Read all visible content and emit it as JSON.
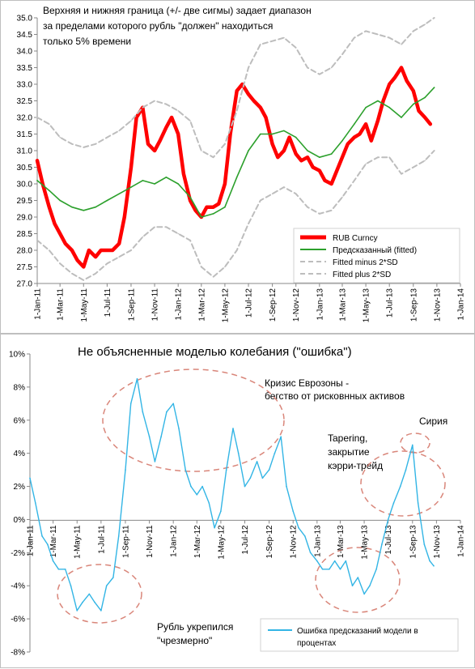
{
  "colors": {
    "rub": "#ff0000",
    "fitted": "#2ca02c",
    "bands": "#bdbdbd",
    "error": "#33b5e5",
    "circles": "#d9867a",
    "annot_red": "#e03030",
    "grid": "#d9d9d9"
  },
  "x_ticks": [
    "1-Jan-11",
    "1-Mar-11",
    "1-May-11",
    "1-Jul-11",
    "1-Sep-11",
    "1-Nov-11",
    "1-Jan-12",
    "1-Mar-12",
    "1-May-12",
    "1-Jul-12",
    "1-Sep-12",
    "1-Nov-12",
    "1-Jan-13",
    "1-Mar-13",
    "1-May-13",
    "1-Jul-13",
    "1-Sep-13",
    "1-Nov-13",
    "1-Jan-14"
  ],
  "top_chart": {
    "title_lines": [
      "Верхняя и нижняя граница (+/- две сигмы) задает диапазон",
      "за пределами которого рубль \"должен\" находиться",
      "только 5% времени"
    ],
    "y_ticks": [
      "27.0",
      "27.5",
      "28.0",
      "28.5",
      "29.0",
      "29.5",
      "30.0",
      "30.5",
      "31.0",
      "31.5",
      "32.0",
      "32.5",
      "33.0",
      "33.5",
      "34.0",
      "34.5",
      "35.0"
    ],
    "legend": [
      "RUB Curncy",
      "Предсказанный (fitted)",
      "Fitted minus 2*SD",
      "Fitted plus 2*SD"
    ]
  },
  "bottom_chart": {
    "title": "Не объясненные моделью колебания (\"ошибка\")",
    "y_ticks": [
      "-8%",
      "-6%",
      "-4%",
      "-2%",
      "0%",
      "2%",
      "4%",
      "6%",
      "8%",
      "10%"
    ],
    "legend": [
      "Ошибка предсказаний модели в процентах"
    ],
    "annotations": [
      {
        "lines": [
          "Кризис Еврозоны -",
          "бегство от рисковнных активов"
        ]
      },
      {
        "lines": [
          "Tapering,",
          "закрытие",
          "кэрри-трейд"
        ]
      },
      {
        "lines": [
          "Сирия"
        ]
      },
      {
        "lines": [
          "Рубль укрепился",
          "\"чрезмерно\""
        ]
      }
    ]
  },
  "chart_data": [
    {
      "type": "line",
      "title": "Верхняя и нижняя граница (+/- две сигмы) задает диапазон за пределами которого рубль \"должен\" находиться только 5% времени",
      "xlabel": "",
      "ylabel": "",
      "x_range": [
        "2011-01-01",
        "2014-01-01"
      ],
      "ylim": [
        27.0,
        35.0
      ],
      "grid": false,
      "legend_position": "bottom-right",
      "series": [
        {
          "name": "RUB Curncy",
          "color": "#ff0000",
          "x": [
            "2011-01-01",
            "2011-01-15",
            "2011-02-01",
            "2011-02-15",
            "2011-03-01",
            "2011-03-15",
            "2011-04-01",
            "2011-04-15",
            "2011-05-01",
            "2011-05-15",
            "2011-06-01",
            "2011-06-15",
            "2011-07-01",
            "2011-07-15",
            "2011-08-01",
            "2011-08-15",
            "2011-09-01",
            "2011-09-15",
            "2011-10-01",
            "2011-10-15",
            "2011-11-01",
            "2011-11-15",
            "2011-12-01",
            "2011-12-15",
            "2012-01-01",
            "2012-01-15",
            "2012-02-01",
            "2012-02-15",
            "2012-03-01",
            "2012-03-15",
            "2012-04-01",
            "2012-04-15",
            "2012-05-01",
            "2012-05-15",
            "2012-06-01",
            "2012-06-15",
            "2012-07-01",
            "2012-07-15",
            "2012-08-01",
            "2012-08-15",
            "2012-09-01",
            "2012-09-15",
            "2012-10-01",
            "2012-10-15",
            "2012-11-01",
            "2012-11-15",
            "2012-12-01",
            "2012-12-15",
            "2013-01-01",
            "2013-01-15",
            "2013-02-01",
            "2013-02-15",
            "2013-03-01",
            "2013-03-15",
            "2013-04-01",
            "2013-04-15",
            "2013-05-01",
            "2013-05-15",
            "2013-06-01",
            "2013-06-15",
            "2013-07-01",
            "2013-07-15",
            "2013-08-01",
            "2013-08-15",
            "2013-09-01",
            "2013-09-15",
            "2013-10-01",
            "2013-10-15"
          ],
          "values": [
            30.7,
            30.0,
            29.3,
            28.8,
            28.5,
            28.2,
            28.0,
            27.7,
            27.5,
            28.0,
            27.8,
            28.0,
            28.0,
            28.0,
            28.2,
            29.0,
            30.5,
            32.0,
            32.3,
            31.2,
            31.0,
            31.3,
            31.7,
            32.0,
            31.5,
            30.3,
            29.5,
            29.2,
            29.0,
            29.3,
            29.3,
            29.4,
            30.0,
            31.5,
            32.8,
            33.0,
            32.7,
            32.5,
            32.3,
            32.0,
            31.2,
            30.8,
            31.0,
            31.4,
            30.9,
            30.7,
            30.8,
            30.5,
            30.4,
            30.1,
            30.0,
            30.4,
            30.8,
            31.2,
            31.4,
            31.5,
            31.8,
            31.3,
            31.9,
            32.5,
            33.0,
            33.2,
            33.5,
            33.1,
            32.8,
            32.2,
            32.0,
            31.8
          ]
        },
        {
          "name": "Предсказанный (fitted)",
          "color": "#2ca02c",
          "x": [
            "2011-01-01",
            "2011-02-01",
            "2011-03-01",
            "2011-04-01",
            "2011-05-01",
            "2011-06-01",
            "2011-07-01",
            "2011-08-01",
            "2011-09-01",
            "2011-10-01",
            "2011-11-01",
            "2011-12-01",
            "2012-01-01",
            "2012-02-01",
            "2012-03-01",
            "2012-04-01",
            "2012-05-01",
            "2012-06-01",
            "2012-07-01",
            "2012-08-01",
            "2012-09-01",
            "2012-10-01",
            "2012-11-01",
            "2012-12-01",
            "2013-01-01",
            "2013-02-01",
            "2013-03-01",
            "2013-04-01",
            "2013-05-01",
            "2013-06-01",
            "2013-07-01",
            "2013-08-01",
            "2013-09-01",
            "2013-10-01",
            "2013-10-25"
          ],
          "values": [
            30.1,
            29.8,
            29.5,
            29.3,
            29.2,
            29.3,
            29.5,
            29.7,
            29.9,
            30.1,
            30.0,
            30.2,
            30.0,
            29.6,
            29.0,
            29.1,
            29.3,
            30.2,
            31.0,
            31.5,
            31.5,
            31.6,
            31.4,
            31.0,
            30.8,
            30.9,
            31.3,
            31.8,
            32.3,
            32.5,
            32.3,
            32.0,
            32.4,
            32.6,
            32.9
          ]
        },
        {
          "name": "Fitted minus 2*SD",
          "color": "#bdbdbd",
          "x": [
            "2011-01-01",
            "2011-02-01",
            "2011-03-01",
            "2011-04-01",
            "2011-05-01",
            "2011-06-01",
            "2011-07-01",
            "2011-08-01",
            "2011-09-01",
            "2011-10-01",
            "2011-11-01",
            "2011-12-01",
            "2012-01-01",
            "2012-02-01",
            "2012-03-01",
            "2012-04-01",
            "2012-05-01",
            "2012-06-01",
            "2012-07-01",
            "2012-08-01",
            "2012-09-01",
            "2012-10-01",
            "2012-11-01",
            "2012-12-01",
            "2013-01-01",
            "2013-02-01",
            "2013-03-01",
            "2013-04-01",
            "2013-05-01",
            "2013-06-01",
            "2013-07-01",
            "2013-08-01",
            "2013-09-01",
            "2013-10-01",
            "2013-10-25"
          ],
          "values": [
            28.3,
            28.0,
            27.6,
            27.3,
            27.1,
            27.3,
            27.6,
            27.8,
            28.0,
            28.4,
            28.7,
            28.7,
            28.5,
            28.3,
            27.5,
            27.2,
            27.5,
            28.0,
            28.8,
            29.5,
            29.7,
            29.9,
            29.7,
            29.3,
            29.1,
            29.2,
            29.6,
            30.1,
            30.6,
            30.8,
            30.8,
            30.3,
            30.5,
            30.7,
            31.0
          ]
        },
        {
          "name": "Fitted plus 2*SD",
          "color": "#bdbdbd",
          "x": [
            "2011-01-01",
            "2011-02-01",
            "2011-03-01",
            "2011-04-01",
            "2011-05-01",
            "2011-06-01",
            "2011-07-01",
            "2011-08-01",
            "2011-09-01",
            "2011-10-01",
            "2011-11-01",
            "2011-12-01",
            "2012-01-01",
            "2012-02-01",
            "2012-03-01",
            "2012-04-01",
            "2012-05-01",
            "2012-06-01",
            "2012-07-01",
            "2012-08-01",
            "2012-09-01",
            "2012-10-01",
            "2012-11-01",
            "2012-12-01",
            "2013-01-01",
            "2013-02-01",
            "2013-03-01",
            "2013-04-01",
            "2013-05-01",
            "2013-06-01",
            "2013-07-01",
            "2013-08-01",
            "2013-09-01",
            "2013-10-01",
            "2013-10-25"
          ],
          "values": [
            32.0,
            31.8,
            31.4,
            31.2,
            31.1,
            31.2,
            31.4,
            31.6,
            31.9,
            32.3,
            32.5,
            32.4,
            32.2,
            31.9,
            31.0,
            30.8,
            31.2,
            32.2,
            33.5,
            34.2,
            34.3,
            34.4,
            34.1,
            33.5,
            33.3,
            33.5,
            33.9,
            34.4,
            34.6,
            34.5,
            34.4,
            34.2,
            34.6,
            34.8,
            35.0
          ]
        }
      ]
    },
    {
      "type": "line",
      "title": "Не объясненные моделью колебания (\"ошибка\")",
      "xlabel": "",
      "ylabel": "",
      "x_range": [
        "2011-01-01",
        "2014-01-01"
      ],
      "ylim": [
        -8,
        10
      ],
      "y_unit": "%",
      "grid": false,
      "legend_position": "bottom-right",
      "series": [
        {
          "name": "Ошибка предсказаний модели в процентах",
          "color": "#33b5e5",
          "x": [
            "2011-01-01",
            "2011-01-15",
            "2011-02-01",
            "2011-02-15",
            "2011-03-01",
            "2011-03-15",
            "2011-04-01",
            "2011-04-15",
            "2011-05-01",
            "2011-05-15",
            "2011-06-01",
            "2011-06-15",
            "2011-07-01",
            "2011-07-15",
            "2011-08-01",
            "2011-08-15",
            "2011-09-01",
            "2011-09-15",
            "2011-10-01",
            "2011-10-15",
            "2011-11-01",
            "2011-11-15",
            "2011-12-01",
            "2011-12-15",
            "2012-01-01",
            "2012-01-15",
            "2012-02-01",
            "2012-02-15",
            "2012-03-01",
            "2012-03-15",
            "2012-04-01",
            "2012-04-15",
            "2012-05-01",
            "2012-05-15",
            "2012-06-01",
            "2012-06-15",
            "2012-07-01",
            "2012-07-15",
            "2012-08-01",
            "2012-08-15",
            "2012-09-01",
            "2012-09-15",
            "2012-10-01",
            "2012-10-15",
            "2012-11-01",
            "2012-11-15",
            "2012-12-01",
            "2012-12-15",
            "2013-01-01",
            "2013-01-15",
            "2013-02-01",
            "2013-02-15",
            "2013-03-01",
            "2013-03-15",
            "2013-04-01",
            "2013-04-15",
            "2013-05-01",
            "2013-05-15",
            "2013-06-01",
            "2013-06-15",
            "2013-07-01",
            "2013-07-15",
            "2013-08-01",
            "2013-08-15",
            "2013-09-01",
            "2013-09-15",
            "2013-10-01",
            "2013-10-15",
            "2013-10-25"
          ],
          "values": [
            2.5,
            1.0,
            -1.0,
            -1.5,
            -2.5,
            -3.0,
            -3.0,
            -4.0,
            -5.5,
            -5.0,
            -4.5,
            -5.0,
            -5.5,
            -4.0,
            -3.5,
            -1.0,
            3.0,
            7.0,
            8.5,
            6.5,
            5.0,
            3.5,
            5.0,
            6.5,
            7.0,
            5.5,
            3.0,
            2.0,
            1.5,
            2.0,
            1.0,
            -0.5,
            0.5,
            3.0,
            5.5,
            4.0,
            2.0,
            2.5,
            3.5,
            2.5,
            3.0,
            4.0,
            5.0,
            2.0,
            0.5,
            -0.5,
            -1.0,
            -2.0,
            -2.5,
            -3.0,
            -3.0,
            -2.5,
            -3.0,
            -2.5,
            -4.0,
            -3.5,
            -4.5,
            -4.0,
            -3.0,
            -1.5,
            0.0,
            1.0,
            2.0,
            3.0,
            4.5,
            1.0,
            -1.5,
            -2.5,
            -2.8
          ]
        }
      ]
    }
  ]
}
